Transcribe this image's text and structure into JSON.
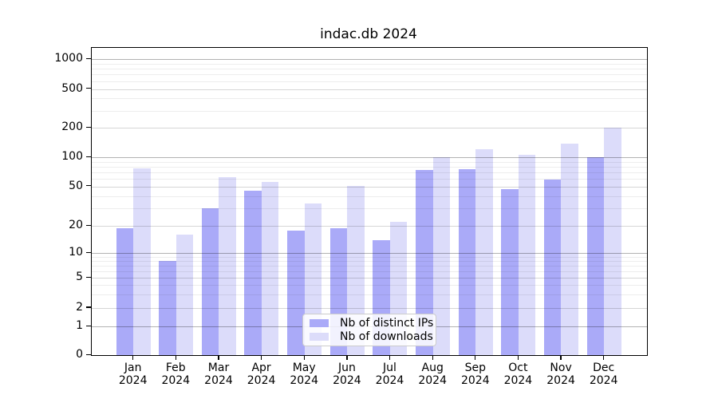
{
  "title": "indac.db 2024",
  "colors": {
    "distinct_ips": "#aaaaf8",
    "downloads": "#dcdcfa",
    "axis": "#000000",
    "legend_border": "#cccccc"
  },
  "chart_data": {
    "type": "bar",
    "title": "indac.db 2024",
    "categories": [
      "Jan",
      "Feb",
      "Mar",
      "Apr",
      "May",
      "Jun",
      "Jul",
      "Aug",
      "Sep",
      "Oct",
      "Nov",
      "Dec"
    ],
    "category_year": "2024",
    "series": [
      {
        "name": "Nb of distinct IPs",
        "color": "#aaaaf8",
        "values": [
          19,
          8,
          30,
          45,
          18,
          19,
          14,
          74,
          76,
          47,
          59,
          100
        ]
      },
      {
        "name": "Nb of downloads",
        "color": "#dcdcfa",
        "values": [
          77,
          16,
          62,
          56,
          34,
          51,
          22,
          100,
          120,
          106,
          137,
          200
        ]
      }
    ],
    "yscale": "symlog",
    "yticks": [
      0,
      1,
      2,
      5,
      10,
      20,
      50,
      100,
      200,
      500,
      1000
    ],
    "ylim": [
      0,
      1300
    ],
    "xlabel": "",
    "ylabel": "",
    "grid": true,
    "legend_position": "lower center"
  }
}
